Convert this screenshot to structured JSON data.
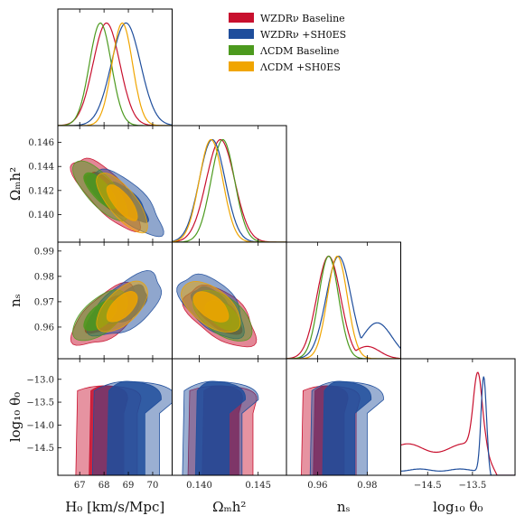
{
  "chart_data": {
    "type": "corner-triangle",
    "params": [
      {
        "key": "H0",
        "label": "H₀ [km/s/Mpc]",
        "ticks": [
          67,
          68,
          69,
          70
        ],
        "range": [
          66.1,
          70.8
        ]
      },
      {
        "key": "om",
        "label": "Ωₘh²",
        "ticks": [
          "0.140",
          "0.145"
        ],
        "range": [
          0.1377,
          0.1474
        ]
      },
      {
        "key": "ns",
        "label": "nₛ",
        "ticks": [
          "0.96",
          "0.98"
        ],
        "range": [
          0.9475,
          0.9935
        ]
      },
      {
        "key": "th",
        "label": "log₁₀ θ₀",
        "ticks": [
          "−14.5",
          "−13.5"
        ],
        "range": [
          -15.1,
          -12.55
        ]
      }
    ],
    "y_ticks": {
      "om": [
        "0.140",
        "0.142",
        "0.144",
        "0.146"
      ],
      "ns": [
        "0.96",
        "0.97",
        "0.98",
        "0.99"
      ],
      "th": [
        "−14.5",
        "−14.0",
        "−13.5",
        "−13.0"
      ]
    },
    "series": [
      {
        "name": "WZDRν Baseline",
        "color": "#c8102e",
        "H0": [
          68.1,
          0.55
        ],
        "om": [
          0.1418,
          0.0012
        ],
        "ns": [
          0.9645,
          0.0048
        ]
      },
      {
        "name": "WZDRν +SH0ES",
        "color": "#1f4e9c",
        "H0": [
          68.9,
          0.6
        ],
        "om": [
          0.1411,
          0.0011
        ],
        "ns": [
          0.9685,
          0.005
        ]
      },
      {
        "name": "ΛCDM Baseline",
        "color": "#4c9a1e",
        "H0": [
          67.85,
          0.45
        ],
        "om": [
          0.142,
          0.001
        ],
        "ns": [
          0.9645,
          0.004
        ]
      },
      {
        "name": "ΛCDM +SH0ES",
        "color": "#f0a500",
        "H0": [
          68.75,
          0.42
        ],
        "om": [
          0.141,
          0.001
        ],
        "ns": [
          0.968,
          0.004
        ]
      }
    ]
  },
  "legend": [
    {
      "label": "WZDRν Baseline",
      "color": "#c8102e"
    },
    {
      "label": "WZDRν +SH0ES",
      "color": "#1f4e9c"
    },
    {
      "label": "ΛCDM Baseline",
      "color": "#4c9a1e"
    },
    {
      "label": "ΛCDM +SH0ES",
      "color": "#f0a500"
    }
  ]
}
